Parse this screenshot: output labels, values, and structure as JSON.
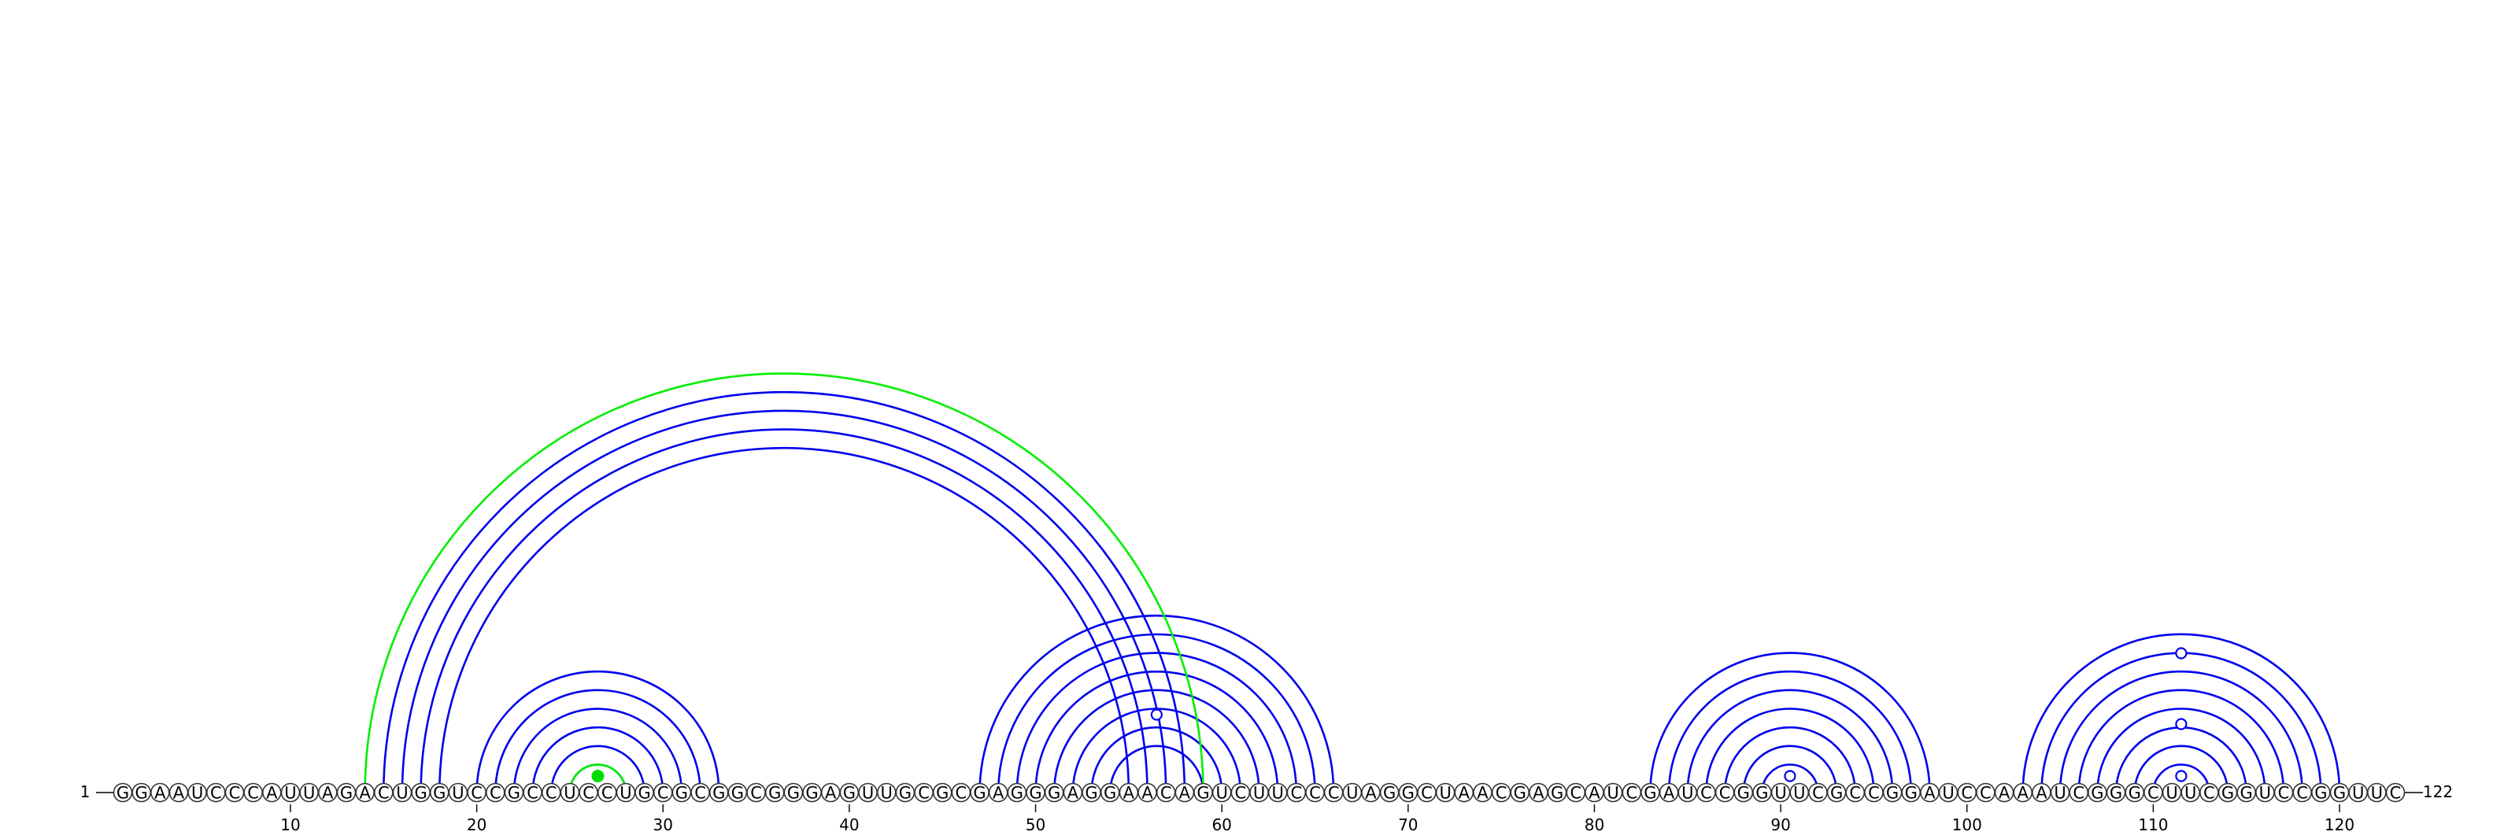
{
  "chart_data": {
    "type": "arc-diagram",
    "sequence": "GGAAUCCCAUUAGACUGGUCCGCCUCCUGCGCGGCGGGAGUUGCGCGAGGGAGGAACAGUCUUCCCUAGGCUAACGAGCAUCGAUCCGGUUCGCCGGAUCCAAAUCGGGCUUCGGUCCGGUUC",
    "start_label": "1",
    "end_label": "122",
    "ticks": [
      "10",
      "20",
      "30",
      "40",
      "50",
      "60",
      "70",
      "80",
      "90",
      "100",
      "110",
      "120"
    ],
    "colors": {
      "pair": "#0000ee",
      "alt_pair": "#00ee00",
      "circle_stroke": "#333333",
      "highlight_fill": "#00dd00"
    },
    "pairs": [
      [
        15,
        58
      ],
      [
        16,
        57
      ],
      [
        17,
        56
      ],
      [
        18,
        55
      ],
      [
        20,
        33
      ],
      [
        21,
        32
      ],
      [
        22,
        31
      ],
      [
        23,
        30
      ],
      [
        24,
        29
      ],
      [
        25,
        28
      ],
      [
        47,
        66
      ],
      [
        48,
        65
      ],
      [
        49,
        64
      ],
      [
        50,
        63
      ],
      [
        51,
        62
      ],
      [
        52,
        61
      ],
      [
        53,
        60
      ],
      [
        54,
        59
      ],
      [
        83,
        98
      ],
      [
        84,
        97
      ],
      [
        85,
        96
      ],
      [
        86,
        95
      ],
      [
        87,
        94
      ],
      [
        88,
        93
      ],
      [
        89,
        92
      ],
      [
        103,
        120
      ],
      [
        104,
        119
      ],
      [
        105,
        118
      ],
      [
        106,
        117
      ],
      [
        107,
        116
      ],
      [
        108,
        115
      ],
      [
        109,
        114
      ],
      [
        110,
        113
      ]
    ],
    "alt_pairs": [
      [
        14,
        59
      ],
      [
        25,
        28
      ]
    ],
    "markers": [
      {
        "position": 56.5,
        "height": 0.33
      },
      {
        "position": 90.5,
        "height": 0.07
      },
      {
        "position": 111.5,
        "height": 0.07
      },
      {
        "position": 111.5,
        "height": 0.29
      },
      {
        "position": 111.5,
        "height": 0.59
      }
    ],
    "highlight_markers": [
      {
        "position": 26.5,
        "height": 0.07
      }
    ]
  }
}
